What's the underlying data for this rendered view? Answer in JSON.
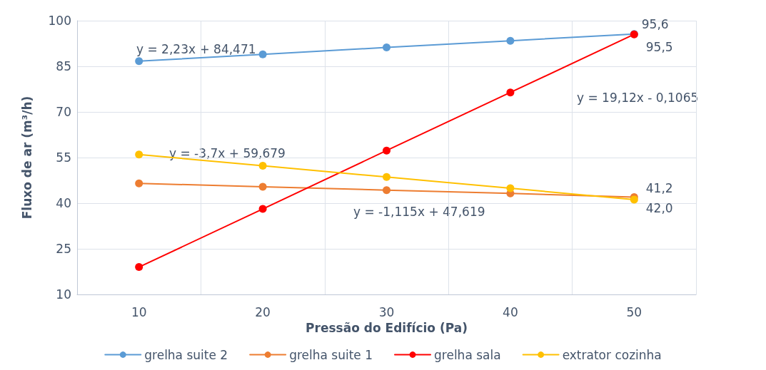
{
  "chart_data": {
    "type": "line",
    "xlabel": "Pressão do Edifício (Pa)",
    "ylabel": "Fluxo de ar (m³/h)",
    "categories": [
      "10",
      "20",
      "30",
      "40",
      "50"
    ],
    "series": [
      {
        "name": "grelha suite 2",
        "color": "#5b9bd5",
        "values": [
          86.7,
          88.9,
          91.2,
          93.4,
          95.6
        ],
        "value_labels": [
          null,
          null,
          null,
          null,
          "95,6"
        ]
      },
      {
        "name": "grelha suite 1",
        "color": "#ed7d31",
        "values": [
          46.5,
          45.4,
          44.3,
          43.2,
          42.0
        ],
        "value_labels": [
          null,
          null,
          null,
          null,
          "42,0"
        ]
      },
      {
        "name": "grelha sala",
        "color": "#ff0000",
        "values": [
          19.0,
          38.1,
          57.3,
          76.4,
          95.5
        ],
        "value_labels": [
          null,
          null,
          null,
          null,
          "95,5"
        ]
      },
      {
        "name": "extrator cozinha",
        "color": "#ffc000",
        "values": [
          56.0,
          52.3,
          48.6,
          44.9,
          41.2
        ],
        "value_labels": [
          null,
          null,
          null,
          null,
          "41,2"
        ]
      }
    ],
    "annotations": [
      "y = 2,23x + 84,471",
      "y = -1,115x + 47,619",
      "y = 19,12x - 0,1065",
      "y = -3,7x + 59,679"
    ],
    "ylim": [
      10,
      100
    ],
    "yticks": [
      10,
      25,
      40,
      55,
      70,
      85,
      100
    ],
    "grid": true,
    "legend": "bottom",
    "marker": "circle",
    "line_style": "solid"
  }
}
